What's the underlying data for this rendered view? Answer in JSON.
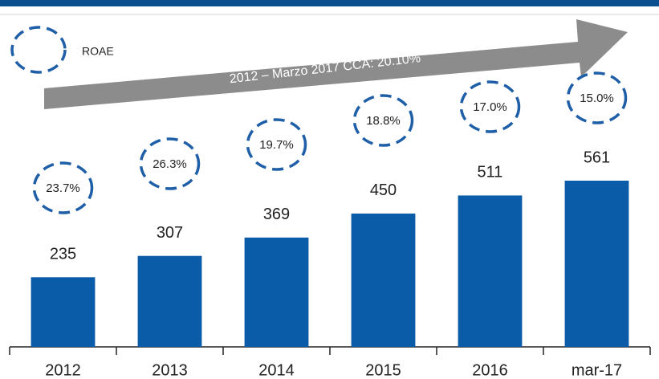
{
  "chart_data": {
    "type": "bar",
    "categories": [
      "2012",
      "2013",
      "2014",
      "2015",
      "2016",
      "mar-17"
    ],
    "values": [
      235,
      307,
      369,
      450,
      511,
      561
    ],
    "color": "#0a5ca8",
    "ylim": [
      0,
      1000
    ],
    "annotation": "2012 – Marzo 2017 CCA: 20.10%",
    "roae": {
      "name": "ROAE",
      "color": "#1f5fa8",
      "values": [
        23.7,
        26.3,
        19.7,
        18.8,
        17.0,
        15.0
      ],
      "value_labels": [
        "23.7%",
        "26.3%",
        "19.7%",
        "18.8%",
        "17.0%",
        "15.0%"
      ]
    }
  }
}
